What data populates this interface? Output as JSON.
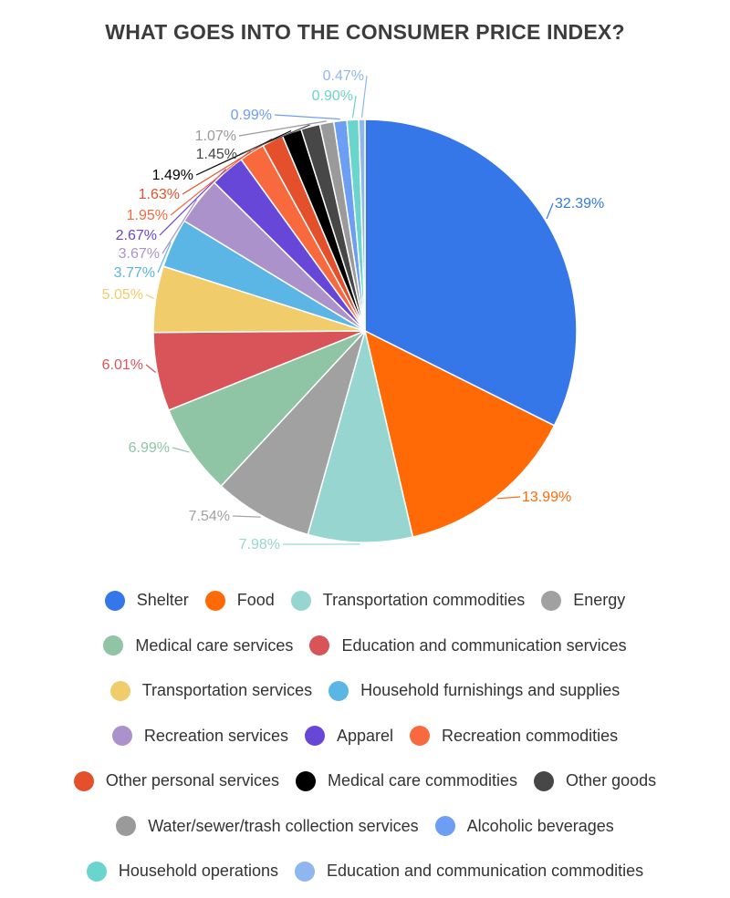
{
  "chart_data": {
    "type": "pie",
    "title": "WHAT GOES INTO THE CONSUMER PRICE INDEX?",
    "slices": [
      {
        "name": "Shelter",
        "value": 32.39,
        "label": "32.39%",
        "color": "#3576e8"
      },
      {
        "name": "Food",
        "value": 13.99,
        "label": "13.99%",
        "color": "#ff6a06"
      },
      {
        "name": "Transportation commodities",
        "value": 7.98,
        "label": "7.98%",
        "color": "#97d6d0"
      },
      {
        "name": "Energy",
        "value": 7.54,
        "label": "7.54%",
        "color": "#a1a1a1"
      },
      {
        "name": "Medical care services",
        "value": 6.99,
        "label": "6.99%",
        "color": "#8fc5a5"
      },
      {
        "name": "Education and communication services",
        "value": 6.01,
        "label": "6.01%",
        "color": "#d95459"
      },
      {
        "name": "Transportation services",
        "value": 5.05,
        "label": "5.05%",
        "color": "#f0cc6b"
      },
      {
        "name": "Household furnishings and supplies",
        "value": 3.77,
        "label": "3.77%",
        "color": "#5bb5e5"
      },
      {
        "name": "Recreation services",
        "value": 3.67,
        "label": "3.67%",
        "color": "#ab92cb"
      },
      {
        "name": "Apparel",
        "value": 2.67,
        "label": "2.67%",
        "color": "#6747d8"
      },
      {
        "name": "Recreation commodities",
        "value": 1.95,
        "label": "1.95%",
        "color": "#f8693d"
      },
      {
        "name": "Other personal services",
        "value": 1.63,
        "label": "1.63%",
        "color": "#e4502c"
      },
      {
        "name": "Medical care commodities",
        "value": 1.49,
        "label": "1.49%",
        "color": "#000000"
      },
      {
        "name": "Other goods",
        "value": 1.45,
        "label": "1.45%",
        "color": "#474747"
      },
      {
        "name": "Water/sewer/trash collection services",
        "value": 1.07,
        "label": "1.07%",
        "color": "#9a9a9a"
      },
      {
        "name": "Alcoholic beverages",
        "value": 0.99,
        "label": "0.99%",
        "color": "#6c9ef4"
      },
      {
        "name": "Household operations",
        "value": 0.9,
        "label": "0.90%",
        "color": "#6ad5cc"
      },
      {
        "name": "Education and communication commodities",
        "value": 0.47,
        "label": "0.47%",
        "color": "#90b6ef"
      }
    ],
    "legend_position": "bottom"
  }
}
